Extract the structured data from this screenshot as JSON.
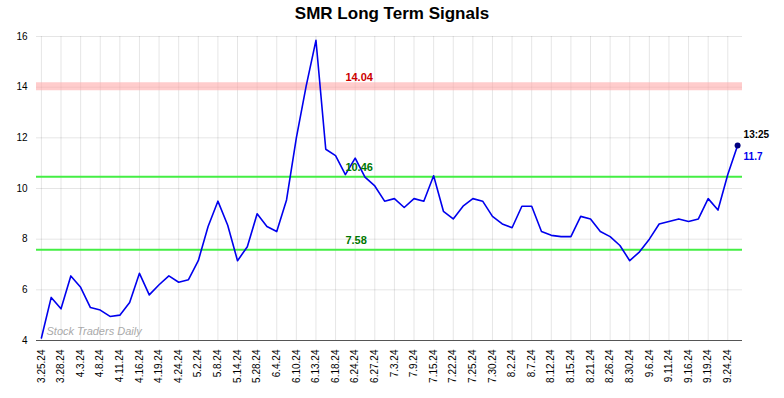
{
  "chart_data": {
    "type": "line",
    "title": "SMR Long Term Signals",
    "categories": [
      "3.25.24",
      null,
      "3.28.24",
      null,
      "4.3.24",
      null,
      "4.8.24",
      null,
      "4.11.24",
      null,
      "4.16.24",
      null,
      "4.19.24",
      null,
      "4.24.24",
      null,
      "5.2.24",
      null,
      "5.8.24",
      null,
      "5.14.24",
      null,
      "5.28.24",
      null,
      "6.4.24",
      null,
      "6.10.24",
      null,
      "6.13.24",
      null,
      "6.18.24",
      null,
      "6.24.24",
      null,
      "6.27.24",
      null,
      "7.3.24",
      null,
      "7.9.24",
      null,
      "7.15.24",
      null,
      "7.22.24",
      null,
      "7.25.24",
      null,
      "7.30.24",
      null,
      "8.2.24",
      null,
      "8.7.24",
      null,
      "8.12.24",
      null,
      "8.15.24",
      null,
      "8.21.24",
      null,
      "8.26.24",
      null,
      "8.30.24",
      null,
      "9.6.24",
      null,
      "9.11.24",
      null,
      "9.16.24",
      null,
      "9.19.24",
      null,
      "9.24.24",
      null
    ],
    "values": [
      4.1,
      5.7,
      5.25,
      6.55,
      6.1,
      5.3,
      5.2,
      4.95,
      5.0,
      5.5,
      6.65,
      5.8,
      6.2,
      6.55,
      6.3,
      6.4,
      7.15,
      8.5,
      9.5,
      8.55,
      7.15,
      7.7,
      9.0,
      8.5,
      8.3,
      9.55,
      12.0,
      14.04,
      15.85,
      11.55,
      11.3,
      10.55,
      11.2,
      10.45,
      10.1,
      9.5,
      9.6,
      9.25,
      9.6,
      9.5,
      10.5,
      9.1,
      8.8,
      9.3,
      9.6,
      9.5,
      8.9,
      8.6,
      8.45,
      9.3,
      9.3,
      8.3,
      8.15,
      8.1,
      8.1,
      8.9,
      8.8,
      8.3,
      8.1,
      7.75,
      7.15,
      7.5,
      8.0,
      8.6,
      8.7,
      8.8,
      8.7,
      8.8,
      9.6,
      9.15,
      10.55,
      11.7
    ],
    "color": "#0000ee",
    "ylim": [
      4,
      16
    ],
    "yticks": [
      4,
      6,
      8,
      10,
      12,
      14,
      16
    ],
    "grid": true,
    "reference_lines": [
      {
        "value": 14.04,
        "label": "14.04",
        "color": "#ffaaaa",
        "label_color": "#cc0000",
        "band": true
      },
      {
        "value": 10.46,
        "label": "10.46",
        "color": "#44ee44",
        "label_color": "#007700",
        "band": false
      },
      {
        "value": 7.58,
        "label": "7.58",
        "color": "#44ee44",
        "label_color": "#007700",
        "band": false
      }
    ],
    "last_point": {
      "color": "#000080",
      "labels": [
        {
          "text": "13:25",
          "color": "#000000"
        },
        {
          "text": "11.7",
          "color": "#0000ee"
        }
      ]
    },
    "watermark": {
      "text": "Stock Traders Daily",
      "color": "#aaaaaa"
    }
  }
}
